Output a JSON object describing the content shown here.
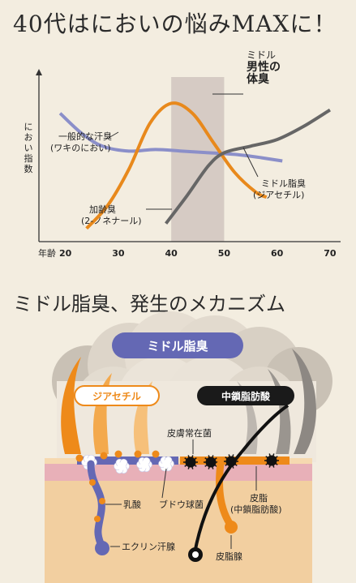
{
  "title": "40代はにおいの悩みMAXに！",
  "section2_title": "ミドル脂臭、発生のメカニズム",
  "chart_data": {
    "type": "line",
    "ylabel": [
      "に",
      "お",
      "い",
      "指",
      "数"
    ],
    "xlabel": "年齢",
    "x_ticks": [
      20,
      30,
      40,
      50,
      60,
      70
    ],
    "xlim": [
      15,
      72
    ],
    "ylim": [
      0,
      100
    ],
    "highlight_range": [
      40,
      50
    ],
    "series": [
      {
        "key": "sweat",
        "name_lines": [
          "一般的な汗臭",
          "(ワキのにおい)"
        ],
        "color": "#8b8fc9",
        "x": [
          19,
          23,
          27,
          32,
          37,
          42,
          47,
          52,
          57,
          61
        ],
        "y": [
          78,
          66,
          58,
          55,
          56,
          55,
          54,
          53,
          51,
          49
        ]
      },
      {
        "key": "diacetyl",
        "name_lines": [
          "ミドル脂臭",
          "(ジアセチル)"
        ],
        "color": "#e8891c",
        "x": [
          24,
          28,
          32,
          36,
          40,
          44,
          48,
          52,
          56,
          58
        ],
        "y": [
          8,
          22,
          44,
          72,
          84,
          78,
          60,
          42,
          30,
          27
        ]
      },
      {
        "key": "nonenal",
        "name_lines": [
          "加齢臭",
          "(2-ノネナール)"
        ],
        "color": "#666666",
        "x": [
          39,
          43,
          47,
          50,
          55,
          60,
          65,
          70
        ],
        "y": [
          11,
          28,
          46,
          54,
          58,
          62,
          70,
          80
        ]
      }
    ],
    "annotation_lines": [
      "ミドル",
      "男性の",
      "体臭"
    ]
  },
  "diagram": {
    "cloud_label": "ミドル脂臭",
    "diacetyl_badge": "ジアセチル",
    "mcfa_badge": "中鎖脂肪酸",
    "labels": {
      "skin_bacteria": "皮膚常在菌",
      "lactic_acid": "乳酸",
      "staph": "ブドウ球菌",
      "eccrine": "エクリン汗腺",
      "sebum_lines": [
        "皮脂",
        "(中鎖脂肪酸)"
      ],
      "sebaceous": "皮脂腺"
    },
    "colors": {
      "accent_purple": "#6468b4",
      "accent_orange": "#ee8a1a",
      "skin_pink": "#e8b0b8",
      "skin_base": "#f2cfa0"
    }
  }
}
